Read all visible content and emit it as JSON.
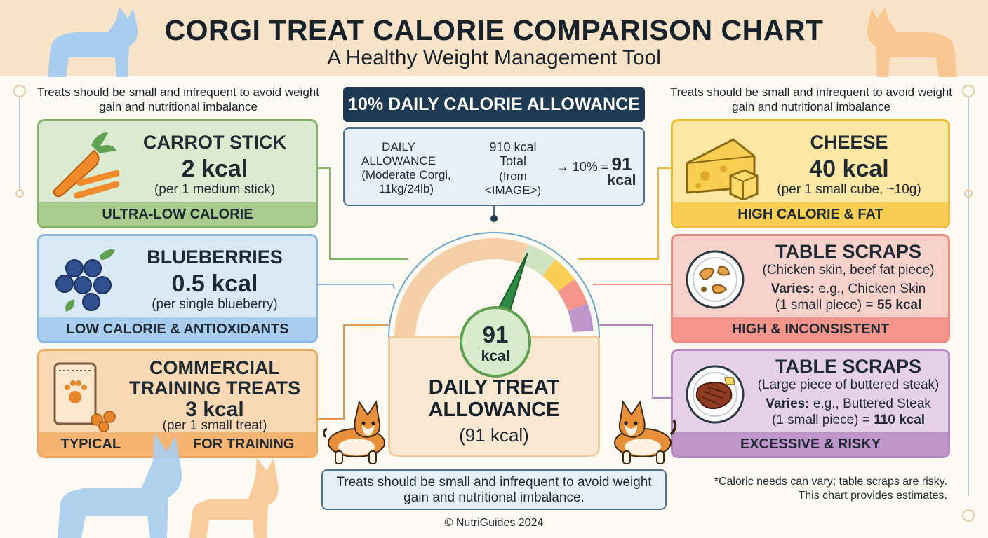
{
  "header": {
    "title": "CORGI TREAT CALORIE COMPARISON CHART",
    "subtitle": "A Healthy Weight Management Tool"
  },
  "side_note_left": "Treats should be small and infrequent to avoid weight gain and nutritional imbalance",
  "side_note_right": "Treats should be small and infrequent to avoid weight gain and nutritional imbalance",
  "allowance": {
    "heading": "10% DAILY CALORIE ALLOWANCE",
    "daily_label": "DAILY ALLOWANCE",
    "daily_detail": "(Moderate Corgi, 11kg/24lb)",
    "total": "910 kcal Total",
    "total_source": "(from <IMAGE>)",
    "percent": "→ 10% =",
    "result_value": "91",
    "result_unit": "kcal"
  },
  "treats_left": [
    {
      "name": "CARROT STICK",
      "kcal": "2 kcal",
      "per": "(per 1 medium stick)",
      "category": "ULTRA-LOW CALORIE"
    },
    {
      "name": "BLUEBERRIES",
      "kcal": "0.5 kcal",
      "per": "(per single blueberry)",
      "category": "LOW CALORIE & ANTIOXIDANTS"
    },
    {
      "name_line1": "COMMERCIAL",
      "name_line2": "TRAINING TREATS",
      "kcal": "3 kcal",
      "per": "(per 1 small treat)",
      "category": "TYPICAL",
      "category_tail": "FOR TRAINING"
    }
  ],
  "treats_right": [
    {
      "name": "CHEESE",
      "kcal": "40 kcal",
      "per": "(per 1 small cube, ~10g)",
      "category": "HIGH CALORIE & FAT"
    },
    {
      "name": "TABLE SCRAPS",
      "desc": "(Chicken skin, beef fat piece)",
      "varies_label": "Varies:",
      "varies_text": "e.g., Chicken Skin",
      "amount_text": "(1 small piece) =",
      "amount_kcal": "55 kcal",
      "category": "HIGH & INCONSISTENT"
    },
    {
      "name": "TABLE SCRAPS",
      "desc": "(Large piece of buttered steak)",
      "varies_label": "Varies:",
      "varies_text": "e.g., Buttered Steak",
      "amount_text": "(1 small piece) =",
      "amount_kcal": "110 kcal",
      "category": "EXCESSIVE & RISKY"
    }
  ],
  "meter": {
    "center_value": "91",
    "center_unit": "kcal",
    "title_line1": "DAILY TREAT",
    "title_line2": "ALLOWANCE",
    "subtitle": "(91 kcal)",
    "level_fraction": 0.62
  },
  "bottom_note": "Treats should be small and infrequent to avoid weight gain and nutritional imbalance.",
  "footnote": "*Caloric needs can vary; table scraps are risky. This chart provides estimates.",
  "copyright": "© NutriGuides 2024",
  "colors": {
    "green": "#a9cd8f",
    "blue": "#a9cdee",
    "orange": "#f5b471",
    "yellow": "#f9cf53",
    "red": "#f4948a",
    "purple": "#bf95cc",
    "navy": "#1e3a52"
  },
  "icons": [
    "carrot-icon",
    "blueberries-icon",
    "treat-bag-icon",
    "cheese-icon",
    "chicken-scraps-icon",
    "steak-icon",
    "corgi-silhouette-icon",
    "corgi-icon"
  ]
}
